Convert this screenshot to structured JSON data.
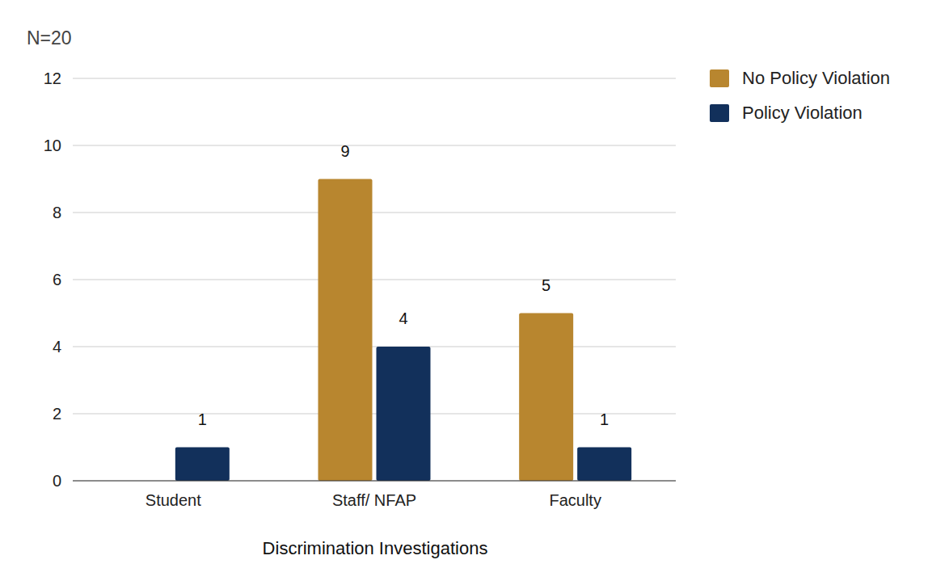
{
  "chart_data": {
    "type": "bar",
    "title": "N=20",
    "x_label": "Discrimination Investigations",
    "categories": [
      "Student",
      "Staff/ NFAP",
      "Faculty"
    ],
    "series": [
      {
        "name": "No Policy Violation",
        "color": "#b8862f",
        "values": [
          null,
          9,
          5
        ]
      },
      {
        "name": "Policy Violation",
        "color": "#12305b",
        "values": [
          1,
          4,
          1
        ]
      }
    ],
    "ylim": [
      0,
      12
    ],
    "yticks": [
      0,
      2,
      4,
      6,
      8,
      10,
      12
    ],
    "grid": true,
    "legend": "top-right",
    "data_labels": true
  }
}
